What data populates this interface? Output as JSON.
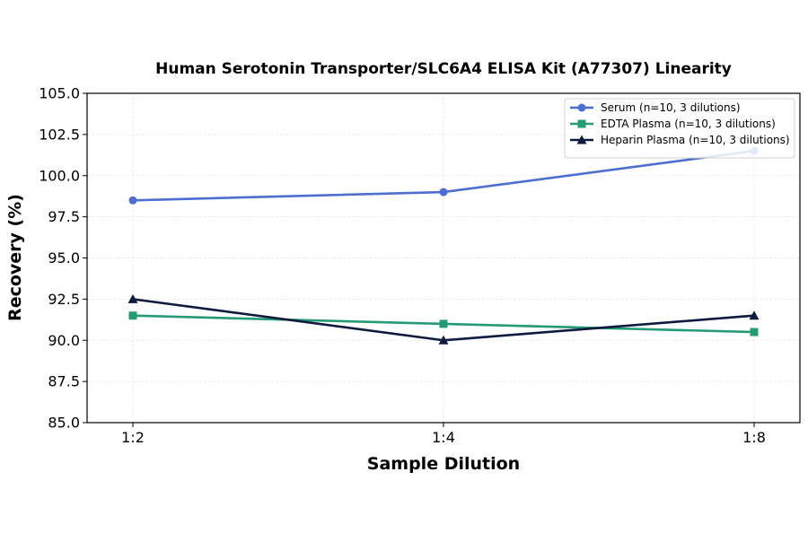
{
  "chart_data": {
    "type": "line",
    "title": "Human Serotonin Transporter/SLC6A4 ELISA Kit (A77307) Linearity",
    "xlabel": "Sample Dilution",
    "ylabel": "Recovery (%)",
    "categories": [
      "1:2",
      "1:4",
      "1:8"
    ],
    "ylim": [
      85.0,
      105.0
    ],
    "yticks": [
      "85.0",
      "87.5",
      "90.0",
      "92.5",
      "95.0",
      "97.5",
      "100.0",
      "102.5",
      "105.0"
    ],
    "grid": true,
    "legend_position": "top-right",
    "series": [
      {
        "name": "Serum (n=10, 3 dilutions)",
        "values": [
          98.5,
          99.0,
          101.5
        ],
        "color": "#4d6fd1",
        "marker": "circle"
      },
      {
        "name": "EDTA Plasma (n=10, 3 dilutions)",
        "values": [
          91.5,
          91.0,
          90.5
        ],
        "color": "#249b74",
        "marker": "square"
      },
      {
        "name": "Heparin Plasma (n=10, 3 dilutions)",
        "values": [
          92.5,
          90.0,
          91.5
        ],
        "color": "#0f1a3f",
        "marker": "triangle"
      }
    ]
  }
}
